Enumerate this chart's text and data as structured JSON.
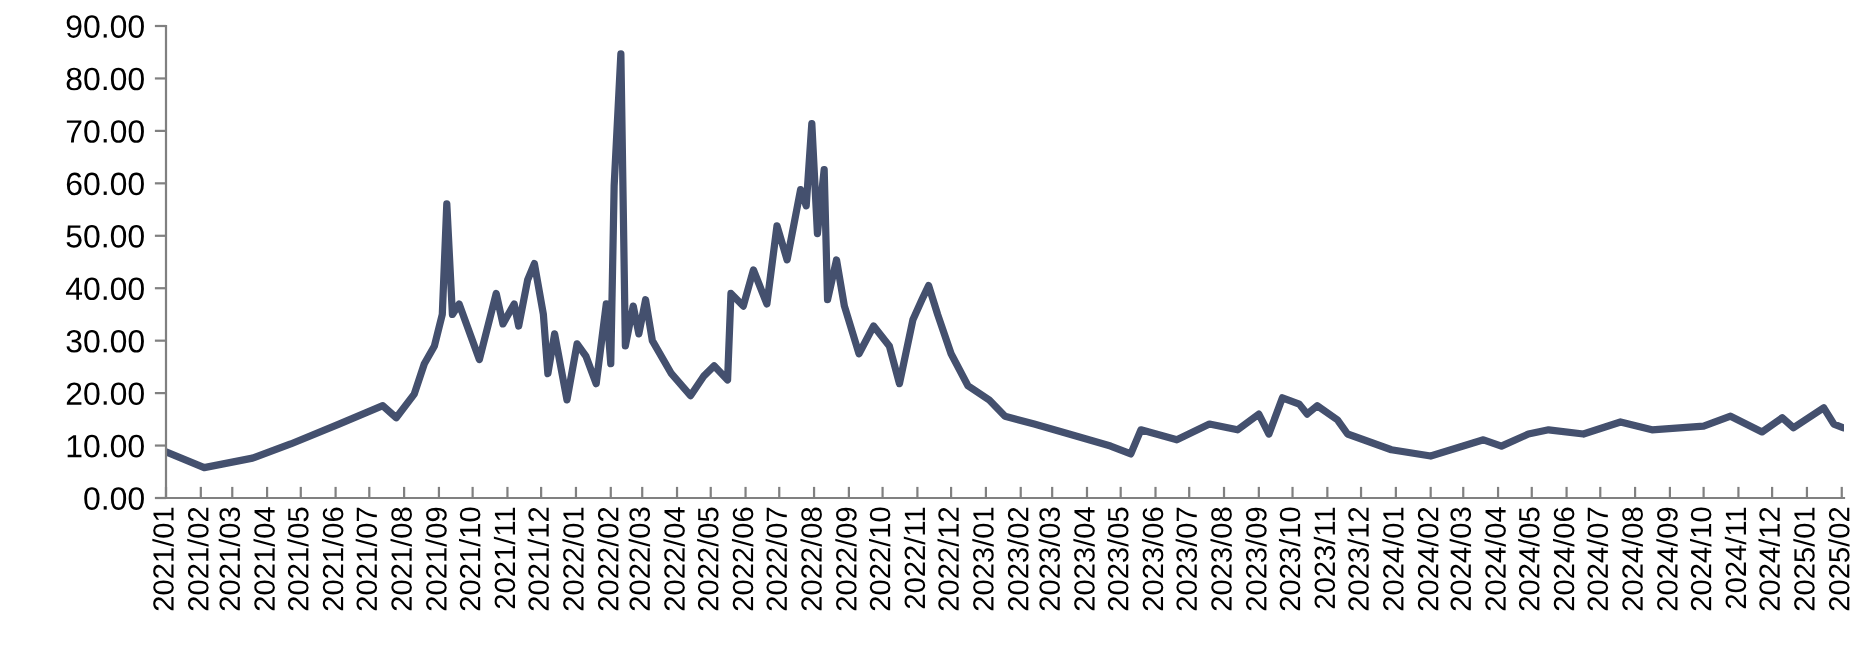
{
  "chart_data": {
    "type": "line",
    "x": [
      "2021-01-01",
      "2021-02-04",
      "2021-03-19",
      "2021-04-22",
      "2021-06-04",
      "2021-07-13",
      "2021-07-25",
      "2021-08-10",
      "2021-08-19",
      "2021-08-28",
      "2021-09-04",
      "2021-09-08",
      "2021-09-13",
      "2021-09-19",
      "2021-10-07",
      "2021-10-22",
      "2021-10-28",
      "2021-11-07",
      "2021-11-11",
      "2021-11-19",
      "2021-11-25",
      "2021-12-03",
      "2021-12-07",
      "2021-12-13",
      "2021-12-24",
      "2022-01-02",
      "2022-01-10",
      "2022-01-19",
      "2022-01-28",
      "2022-02-01",
      "2022-02-04",
      "2022-02-10",
      "2022-02-14",
      "2022-02-21",
      "2022-02-26",
      "2022-03-04",
      "2022-03-10",
      "2022-03-27",
      "2022-04-13",
      "2022-04-25",
      "2022-05-04",
      "2022-05-16",
      "2022-05-19",
      "2022-05-30",
      "2022-06-08",
      "2022-06-20",
      "2022-06-29",
      "2022-07-08",
      "2022-07-20",
      "2022-07-25",
      "2022-07-30",
      "2022-08-04",
      "2022-08-10",
      "2022-08-13",
      "2022-08-21",
      "2022-08-28",
      "2022-09-10",
      "2022-09-23",
      "2022-10-07",
      "2022-10-16",
      "2022-10-28",
      "2022-11-05",
      "2022-11-11",
      "2022-11-19",
      "2022-12-01",
      "2022-12-16",
      "2023-01-04",
      "2023-01-18",
      "2023-02-13",
      "2023-03-16",
      "2023-04-22",
      "2023-05-10",
      "2023-05-19",
      "2023-06-20",
      "2023-07-19",
      "2023-08-13",
      "2023-09-01",
      "2023-09-10",
      "2023-09-22",
      "2023-10-07",
      "2023-10-14",
      "2023-10-23",
      "2023-11-10",
      "2023-11-19",
      "2023-12-28",
      "2024-02-01",
      "2024-03-19",
      "2024-04-04",
      "2024-04-28",
      "2024-05-16",
      "2024-06-16",
      "2024-07-19",
      "2024-08-16",
      "2024-10-01",
      "2024-10-25",
      "2024-11-22",
      "2024-12-10",
      "2024-12-20",
      "2025-01-16",
      "2025-01-25",
      "2025-02-02"
    ],
    "series": [
      {
        "color": "#44506e",
        "values": [
          8.8,
          5.8,
          7.6,
          10.3,
          14.1,
          17.6,
          15.3,
          19.8,
          25.6,
          29,
          35,
          56.1,
          35,
          37,
          26.4,
          39,
          33.2,
          37,
          32.8,
          41.6,
          44.7,
          35,
          23.7,
          31.3,
          18.7,
          29.4,
          27,
          21.8,
          37,
          25.6,
          59.5,
          84.7,
          29,
          36.6,
          31.3,
          37.8,
          30,
          23.7,
          19.5,
          23.3,
          25.2,
          22.5,
          39,
          36.6,
          43.5,
          37,
          51.9,
          45.4,
          58.8,
          55.7,
          71.4,
          50.4,
          62.6,
          37.8,
          45.4,
          36.6,
          27.5,
          32.8,
          29,
          21.8,
          34,
          37.8,
          40.5,
          35,
          27.5,
          21.4,
          18.7,
          15.6,
          14.1,
          12.2,
          9.9,
          8.4,
          13,
          11.1,
          14.1,
          13,
          16,
          12.2,
          19.1,
          17.9,
          16,
          17.6,
          14.9,
          12.2,
          9.2,
          8,
          11.1,
          9.9,
          12.2,
          13,
          12.2,
          14.5,
          13,
          13.7,
          15.6,
          12.6,
          15.3,
          13.4,
          17.2,
          14.1,
          13.4
        ]
      }
    ],
    "xlim": [
      "2021-01-01",
      "2025-02-03"
    ],
    "xticks": [
      {
        "value": "2021-01-01",
        "label": "2021/01"
      },
      {
        "value": "2021-02-01",
        "label": "2021/02"
      },
      {
        "value": "2021-03-01",
        "label": "2021/03"
      },
      {
        "value": "2021-04-01",
        "label": "2021/04"
      },
      {
        "value": "2021-05-01",
        "label": "2021/05"
      },
      {
        "value": "2021-06-01",
        "label": "2021/06"
      },
      {
        "value": "2021-07-01",
        "label": "2021/07"
      },
      {
        "value": "2021-08-01",
        "label": "2021/08"
      },
      {
        "value": "2021-09-01",
        "label": "2021/09"
      },
      {
        "value": "2021-10-01",
        "label": "2021/10"
      },
      {
        "value": "2021-11-01",
        "label": "2021/11"
      },
      {
        "value": "2021-12-01",
        "label": "2021/12"
      },
      {
        "value": "2022-01-01",
        "label": "2022/01"
      },
      {
        "value": "2022-02-01",
        "label": "2022/02"
      },
      {
        "value": "2022-03-01",
        "label": "2022/03"
      },
      {
        "value": "2022-04-01",
        "label": "2022/04"
      },
      {
        "value": "2022-05-01",
        "label": "2022/05"
      },
      {
        "value": "2022-06-01",
        "label": "2022/06"
      },
      {
        "value": "2022-07-01",
        "label": "2022/07"
      },
      {
        "value": "2022-08-01",
        "label": "2022/08"
      },
      {
        "value": "2022-09-01",
        "label": "2022/09"
      },
      {
        "value": "2022-10-01",
        "label": "2022/10"
      },
      {
        "value": "2022-11-01",
        "label": "2022/11"
      },
      {
        "value": "2022-12-01",
        "label": "2022/12"
      },
      {
        "value": "2023-01-01",
        "label": "2023/01"
      },
      {
        "value": "2023-02-01",
        "label": "2023/02"
      },
      {
        "value": "2023-03-01",
        "label": "2023/03"
      },
      {
        "value": "2023-04-01",
        "label": "2023/04"
      },
      {
        "value": "2023-05-01",
        "label": "2023/05"
      },
      {
        "value": "2023-06-01",
        "label": "2023/06"
      },
      {
        "value": "2023-07-01",
        "label": "2023/07"
      },
      {
        "value": "2023-08-01",
        "label": "2023/08"
      },
      {
        "value": "2023-09-01",
        "label": "2023/09"
      },
      {
        "value": "2023-10-01",
        "label": "2023/10"
      },
      {
        "value": "2023-11-01",
        "label": "2023/11"
      },
      {
        "value": "2023-12-01",
        "label": "2023/12"
      },
      {
        "value": "2024-01-01",
        "label": "2024/01"
      },
      {
        "value": "2024-02-01",
        "label": "2024/02"
      },
      {
        "value": "2024-03-01",
        "label": "2024/03"
      },
      {
        "value": "2024-04-01",
        "label": "2024/04"
      },
      {
        "value": "2024-05-01",
        "label": "2024/05"
      },
      {
        "value": "2024-06-01",
        "label": "2024/06"
      },
      {
        "value": "2024-07-01",
        "label": "2024/07"
      },
      {
        "value": "2024-08-01",
        "label": "2024/08"
      },
      {
        "value": "2024-09-01",
        "label": "2024/09"
      },
      {
        "value": "2024-10-01",
        "label": "2024/10"
      },
      {
        "value": "2024-11-01",
        "label": "2024/11"
      },
      {
        "value": "2024-12-01",
        "label": "2024/12"
      },
      {
        "value": "2025-01-01",
        "label": "2025/01"
      },
      {
        "value": "2025-02-01",
        "label": "2025/02"
      }
    ],
    "ylim": [
      0,
      90
    ],
    "yticks": [
      {
        "value": 0,
        "label": "0.00"
      },
      {
        "value": 10,
        "label": "10.00"
      },
      {
        "value": 20,
        "label": "20.00"
      },
      {
        "value": 30,
        "label": "30.00"
      },
      {
        "value": 40,
        "label": "40.00"
      },
      {
        "value": 50,
        "label": "50.00"
      },
      {
        "value": 60,
        "label": "60.00"
      },
      {
        "value": 70,
        "label": "70.00"
      },
      {
        "value": 80,
        "label": "80.00"
      },
      {
        "value": 90,
        "label": "90.00"
      }
    ],
    "marker": "none",
    "line_style": "solid"
  }
}
